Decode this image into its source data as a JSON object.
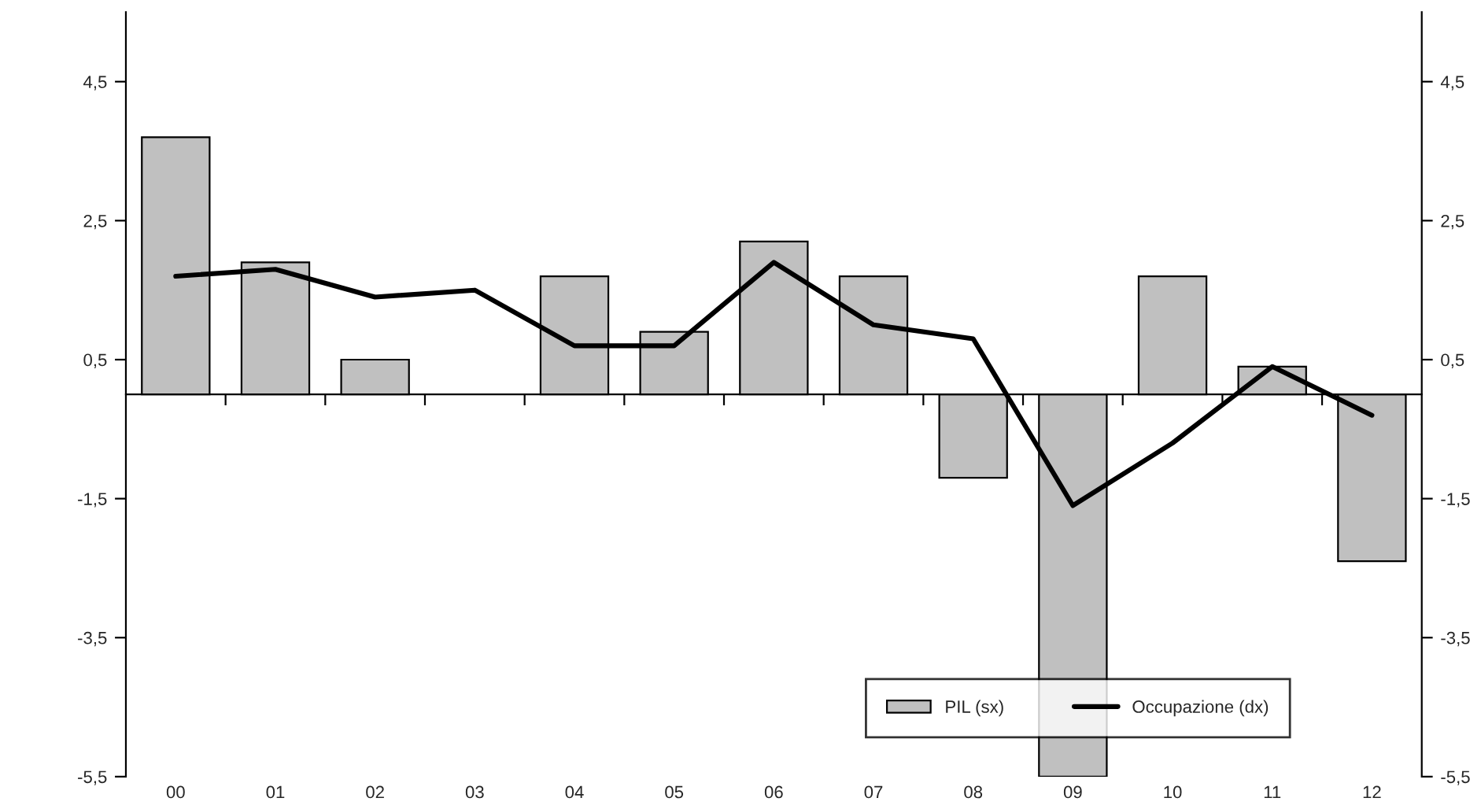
{
  "chart_data": {
    "type": "bar",
    "categories": [
      "00",
      "01",
      "02",
      "03",
      "04",
      "05",
      "06",
      "07",
      "08",
      "09",
      "10",
      "11",
      "12"
    ],
    "series": [
      {
        "name": "PIL (sx)",
        "color": "#c0c0c0",
        "values": [
          3.7,
          1.9,
          0.5,
          null,
          1.7,
          0.9,
          2.2,
          1.7,
          -1.2,
          -5.5,
          1.7,
          0.4,
          -2.4
        ]
      },
      {
        "name": "Occupazione (dx)",
        "type": "line",
        "axis": "y2",
        "color": "#000000",
        "values": [
          1.7,
          1.8,
          1.4,
          1.5,
          0.7,
          0.7,
          1.9,
          1.0,
          0.8,
          -1.6,
          -0.7,
          0.4,
          -0.3
        ]
      }
    ],
    "ylim": [
      -5.5,
      5.5
    ],
    "yticks": [
      {
        "value": 4.5,
        "label": "4,5"
      },
      {
        "value": 2.5,
        "label": "2,5"
      },
      {
        "value": 0.5,
        "label": "0,5"
      },
      {
        "value": -1.5,
        "label": "-1,5"
      },
      {
        "value": -3.5,
        "label": "-3,5"
      },
      {
        "value": -5.5,
        "label": "-5,5"
      }
    ],
    "y2lim": [
      -5.5,
      5.5
    ],
    "y2ticks": [
      {
        "value": 4.5,
        "label": "4,5"
      },
      {
        "value": 2.5,
        "label": "2,5"
      },
      {
        "value": 0.5,
        "label": "0,5"
      },
      {
        "value": -1.5,
        "label": "-1,5"
      },
      {
        "value": -3.5,
        "label": "-3,5"
      },
      {
        "value": -5.5,
        "label": "-5,5"
      }
    ],
    "grid": false,
    "legend": "bottom right",
    "marker": "none",
    "line_style": "solid"
  }
}
